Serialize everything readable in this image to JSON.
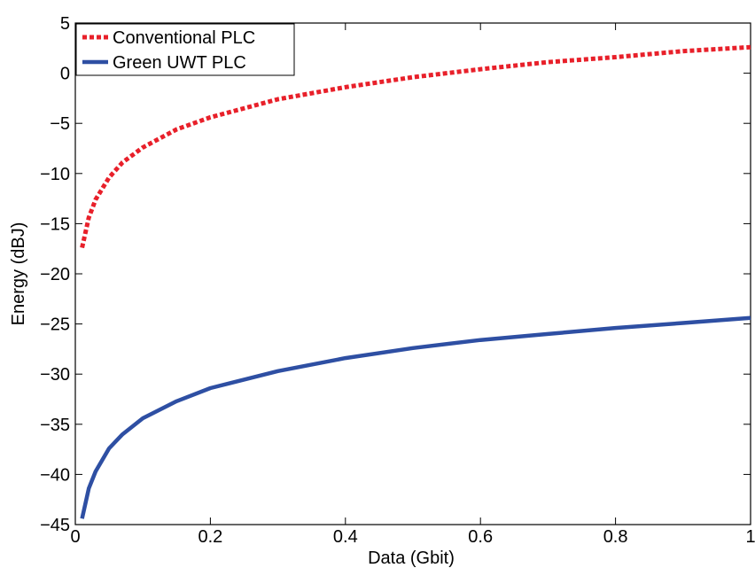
{
  "chart_data": {
    "type": "line",
    "xlabel": "Data (Gbit)",
    "ylabel": "Energy (dBJ)",
    "xlim": [
      0,
      1
    ],
    "ylim": [
      -45,
      5
    ],
    "xticks": [
      0,
      0.2,
      0.4,
      0.6,
      0.8,
      1
    ],
    "xtick_labels": [
      "0",
      "0.2",
      "0.4",
      "0.6",
      "0.8",
      "1"
    ],
    "yticks": [
      5,
      0,
      -5,
      -10,
      -15,
      -20,
      -25,
      -30,
      -35,
      -40,
      -45
    ],
    "ytick_labels": [
      "5",
      "0",
      "−5",
      "−10",
      "−15",
      "−20",
      "−25",
      "−30",
      "−35",
      "−40",
      "−45"
    ],
    "grid": false,
    "legend_position": "top-left",
    "series": [
      {
        "name": "Conventional PLC",
        "color": "#e8202a",
        "style": "dotted",
        "x": [
          0.01,
          0.02,
          0.03,
          0.05,
          0.07,
          0.1,
          0.15,
          0.2,
          0.3,
          0.4,
          0.5,
          0.6,
          0.7,
          0.8,
          0.9,
          1.0
        ],
        "y": [
          -17.4,
          -14.4,
          -12.6,
          -10.4,
          -8.9,
          -7.4,
          -5.6,
          -4.4,
          -2.6,
          -1.4,
          -0.4,
          0.4,
          1.1,
          1.6,
          2.2,
          2.6
        ]
      },
      {
        "name": "Green UWT PLC",
        "color": "#2e4fa3",
        "style": "solid",
        "x": [
          0.01,
          0.02,
          0.03,
          0.05,
          0.07,
          0.1,
          0.15,
          0.2,
          0.3,
          0.4,
          0.5,
          0.6,
          0.7,
          0.8,
          0.9,
          1.0
        ],
        "y": [
          -44.4,
          -41.4,
          -39.7,
          -37.4,
          -36.0,
          -34.4,
          -32.7,
          -31.4,
          -29.7,
          -28.4,
          -27.4,
          -26.6,
          -26.0,
          -25.4,
          -24.9,
          -24.4
        ]
      }
    ]
  }
}
